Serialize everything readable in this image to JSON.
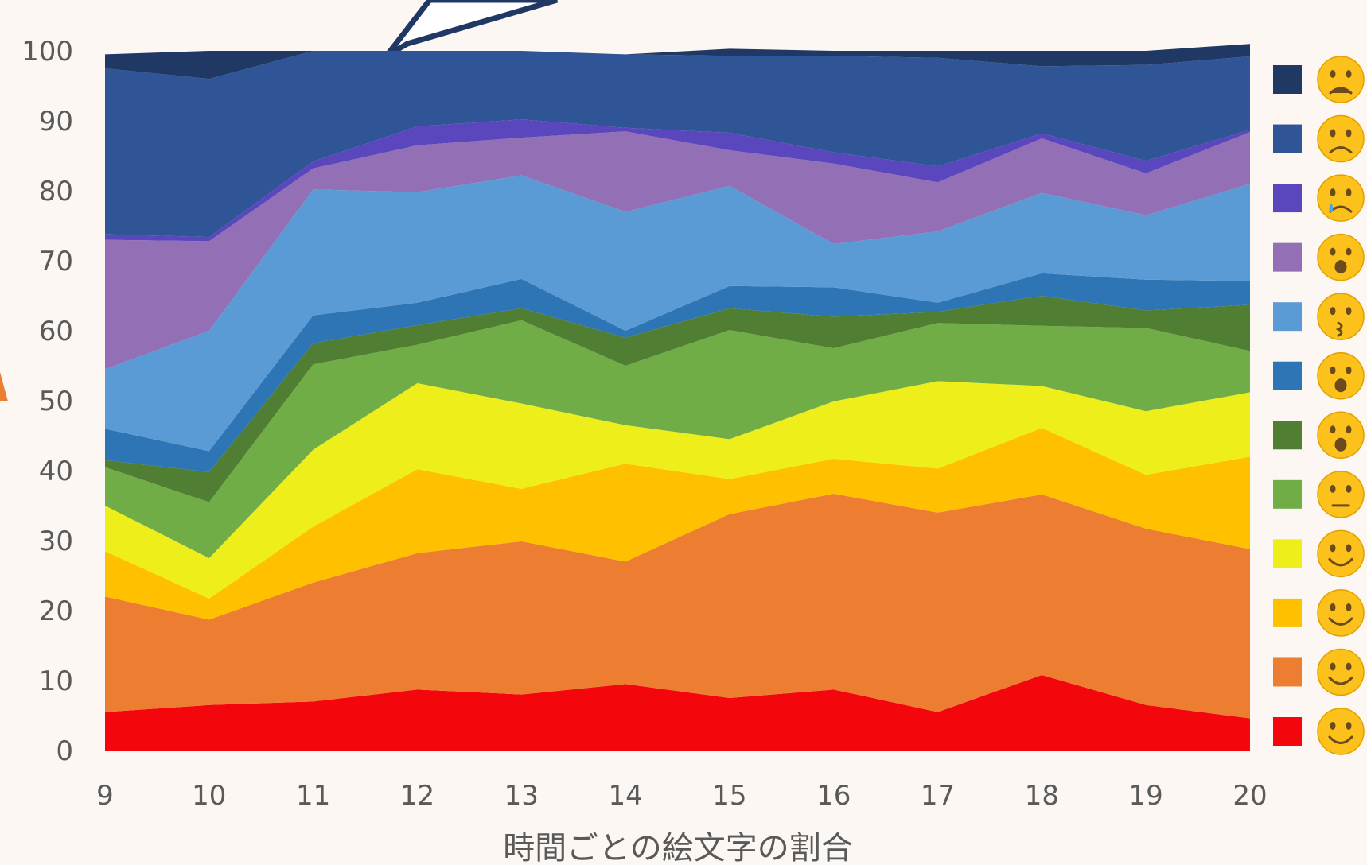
{
  "chart_data": {
    "type": "area",
    "stacked": true,
    "xlabel": "時間ごとの絵文字の割合",
    "ylabel": "",
    "x": [
      9,
      10,
      11,
      12,
      13,
      14,
      15,
      16,
      17,
      18,
      19,
      20
    ],
    "ylim": [
      0,
      100
    ],
    "yticks": [
      0,
      10,
      20,
      30,
      40,
      50,
      60,
      70,
      80,
      90,
      100
    ],
    "grid": false,
    "legend_position": "right",
    "series": [
      {
        "emoji": "grinning-face",
        "color": "#f3070d",
        "values": [
          5.5,
          6.5,
          7,
          8.7,
          8,
          9.5,
          7.5,
          8.7,
          5.5,
          10.8,
          6.5,
          4.6
        ]
      },
      {
        "emoji": "smiling-face",
        "color": "#ed7d31",
        "values": [
          16.5,
          12.2,
          17,
          19.5,
          21.9,
          17.5,
          26.3,
          28,
          28.5,
          25.8,
          25.2,
          24.2
        ]
      },
      {
        "emoji": "savoring-food-face",
        "color": "#ffc000",
        "values": [
          6.5,
          3,
          8,
          12,
          7.5,
          14,
          5,
          5,
          6.3,
          9.5,
          7.7,
          13.2
        ]
      },
      {
        "emoji": "winking-face",
        "color": "#eeee1a",
        "values": [
          6.5,
          5.8,
          11,
          12.3,
          12.2,
          5.5,
          5.7,
          8.2,
          12.5,
          6,
          9.1,
          9.2
        ]
      },
      {
        "emoji": "face-with-monocle",
        "color": "#70ad47",
        "values": [
          5.5,
          8,
          12.2,
          5.5,
          11.9,
          8.5,
          15.6,
          7.6,
          8.3,
          8.6,
          11.9,
          5.9
        ]
      },
      {
        "emoji": "face-with-open-mouth",
        "color": "#507e32",
        "values": [
          1,
          4.3,
          3,
          2.8,
          1.7,
          4,
          3.1,
          4.5,
          1.6,
          4.3,
          2.5,
          6.6
        ]
      },
      {
        "emoji": "hushed-face",
        "color": "#2e75b6",
        "values": [
          4.5,
          3,
          4,
          3.2,
          4.2,
          1,
          3.2,
          4.2,
          1.3,
          3.2,
          4.4,
          3.4
        ]
      },
      {
        "emoji": "kissing-face",
        "color": "#5b9bd5",
        "values": [
          8.5,
          17.2,
          18,
          15.8,
          14.8,
          17,
          14.3,
          6.2,
          10.2,
          11.5,
          9.2,
          13.9
        ]
      },
      {
        "emoji": "dizzy-face",
        "color": "#9370b6",
        "values": [
          18.5,
          12.8,
          3,
          6.7,
          5.4,
          11.5,
          5.1,
          11.5,
          7,
          7.8,
          6,
          7.4
        ]
      },
      {
        "emoji": "crying-face",
        "color": "#5b47bd",
        "values": [
          0.8,
          0.6,
          1,
          2.7,
          2.6,
          0.5,
          2.5,
          1.6,
          2.3,
          0.7,
          1.8,
          0.3
        ]
      },
      {
        "emoji": "weary-face",
        "color": "#2f5597",
        "values": [
          23.7,
          22.6,
          15.8,
          10.8,
          9.8,
          10.5,
          11,
          13.8,
          15.5,
          9.6,
          13.7,
          10.5
        ]
      },
      {
        "emoji": "face-with-steam-from-nose",
        "color": "#203864",
        "values": [
          2,
          4,
          0,
          0,
          0,
          0,
          1,
          0.7,
          1,
          2.2,
          2,
          1.8
        ]
      }
    ]
  }
}
